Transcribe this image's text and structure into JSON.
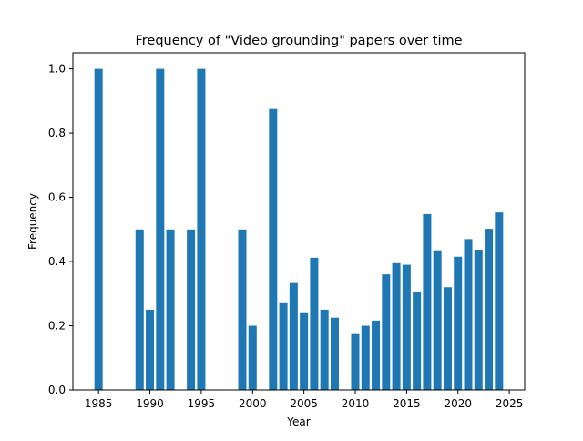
{
  "chart_data": {
    "type": "bar",
    "title": "Frequency of \"Video grounding\" papers over time",
    "xlabel": "Year",
    "ylabel": "Frequency",
    "x": [
      1985,
      1989,
      1990,
      1991,
      1992,
      1994,
      1995,
      1999,
      2000,
      2002,
      2003,
      2004,
      2005,
      2006,
      2007,
      2008,
      2010,
      2011,
      2012,
      2013,
      2014,
      2015,
      2016,
      2017,
      2018,
      2019,
      2020,
      2021,
      2022,
      2023,
      2024
    ],
    "values": [
      1.0,
      0.5,
      0.25,
      1.0,
      0.5,
      0.5,
      1.0,
      0.5,
      0.2,
      0.875,
      0.273,
      0.333,
      0.242,
      0.412,
      0.25,
      0.225,
      0.174,
      0.2,
      0.216,
      0.36,
      0.395,
      0.39,
      0.306,
      0.548,
      0.435,
      0.32,
      0.415,
      0.47,
      0.437,
      0.502,
      0.553
    ],
    "xlim": [
      1982.5,
      2026.5
    ],
    "ylim": [
      0,
      1.05
    ],
    "xticks": [
      1985,
      1990,
      1995,
      2000,
      2005,
      2010,
      2015,
      2020,
      2025
    ],
    "yticks": [
      0.0,
      0.2,
      0.4,
      0.6,
      0.8,
      1.0
    ],
    "ytick_labels": [
      "0.0",
      "0.2",
      "0.4",
      "0.6",
      "0.8",
      "1.0"
    ],
    "bar_color": "#1f77b4",
    "grid": false,
    "legend": false
  }
}
